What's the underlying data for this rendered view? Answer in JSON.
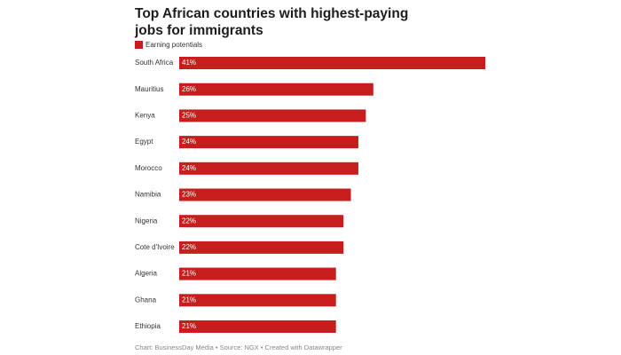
{
  "chart_data": {
    "type": "bar",
    "orientation": "horizontal",
    "title": "Top African countries with highest-paying jobs for immigrants",
    "series": [
      {
        "name": "Earning potentials",
        "color": "#c71e1d",
        "values": [
          41,
          26,
          25,
          24,
          24,
          23,
          22,
          22,
          21,
          21,
          21
        ],
        "value_labels": [
          "41%",
          "26%",
          "25%",
          "24%",
          "24%",
          "23%",
          "22%",
          "22%",
          "21%",
          "21%",
          "21%"
        ]
      }
    ],
    "categories": [
      "South Africa",
      "Mauritius",
      "Kenya",
      "Egypt",
      "Morocco",
      "Namibia",
      "Nigeria",
      "Cote d'Ivoire",
      "Algeria",
      "Ghana",
      "Ethiopia"
    ],
    "source": "Chart: BusinessDay Media • Source: NGX • Created with Datawrapper"
  }
}
